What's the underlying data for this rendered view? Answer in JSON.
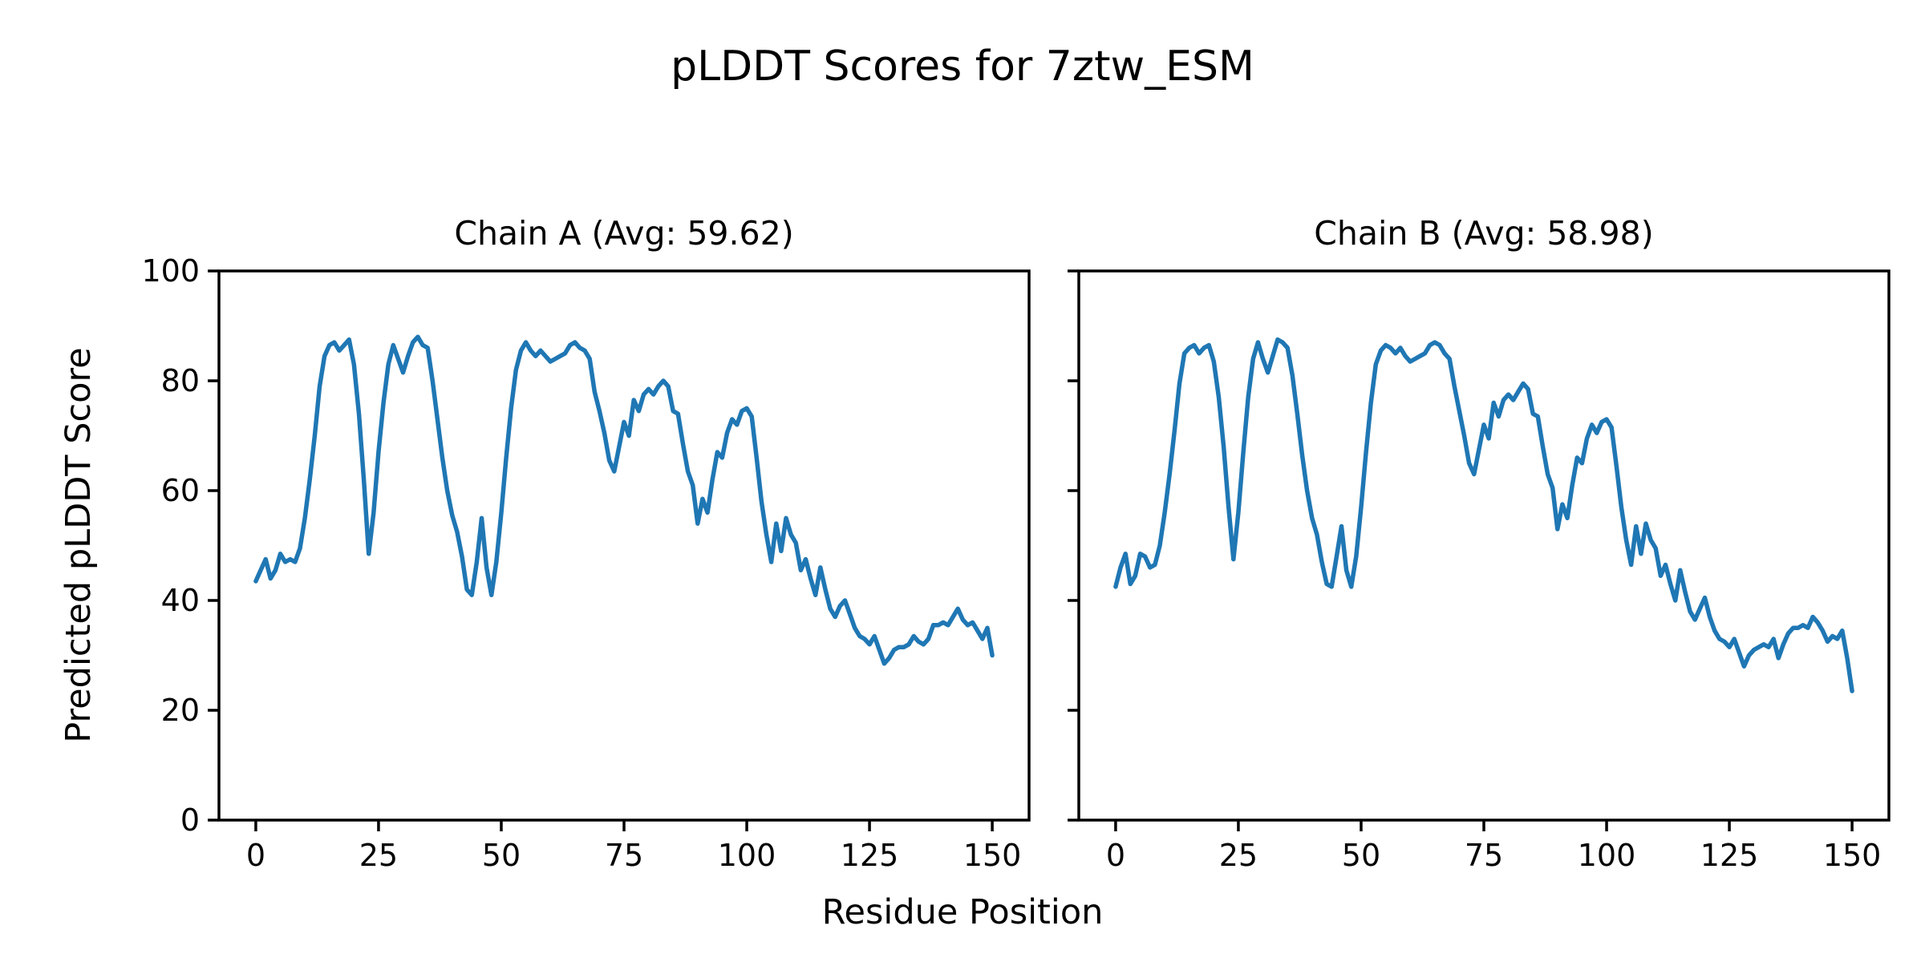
{
  "figure": {
    "title": "pLDDT Scores for 7ztw_ESM",
    "xlabel": "Residue Position",
    "ylabel": "Predicted pLDDT Score",
    "background_color": "#ffffff",
    "line_color": "#1f77b4",
    "axis_color": "#000000"
  },
  "chart_data": [
    {
      "type": "line",
      "title": "Chain A (Avg: 59.62)",
      "chain": "A",
      "average_plddt": 59.62,
      "xlabel": "Residue Position",
      "ylabel": "Predicted pLDDT Score",
      "xlim": [
        -7.5,
        157.5
      ],
      "ylim": [
        0,
        100
      ],
      "xticks": [
        0,
        25,
        50,
        75,
        100,
        125,
        150
      ],
      "yticks": [
        0,
        20,
        40,
        60,
        80,
        100
      ],
      "grid": false,
      "x_start": 0,
      "x_step": 1,
      "values": [
        43.5,
        45.5,
        47.5,
        44,
        45.5,
        48.5,
        47,
        47.5,
        47,
        49.5,
        55,
        62,
        70,
        79,
        84.5,
        86.5,
        87,
        85.5,
        86.5,
        87.5,
        83,
        74,
        62,
        48.5,
        56,
        67,
        76,
        83,
        86.5,
        84,
        81.5,
        84.5,
        87,
        88,
        86.5,
        86,
        80,
        73,
        66,
        60,
        55.5,
        52.5,
        48,
        42,
        41,
        47,
        55,
        46,
        41,
        47,
        56,
        66,
        75,
        82,
        85.5,
        87,
        85.5,
        84.5,
        85.5,
        84.5,
        83.5,
        84,
        84.5,
        85,
        86.5,
        87,
        86,
        85.5,
        84,
        78,
        74.5,
        70.5,
        65.5,
        63.5,
        68,
        72.5,
        70,
        76.5,
        74.5,
        77.5,
        78.5,
        77.5,
        79,
        80,
        79,
        74.5,
        74,
        68.5,
        63.5,
        61,
        54,
        58.5,
        56,
        62,
        67,
        66,
        70.5,
        73,
        72,
        74.5,
        75,
        73.5,
        66,
        58,
        52,
        47,
        54,
        49,
        55,
        52,
        50.5,
        45.5,
        47.5,
        44,
        41,
        46,
        42,
        38.5,
        37,
        39,
        40,
        37.5,
        35,
        33.5,
        33,
        32,
        33.5,
        31,
        28.5,
        29.5,
        31,
        31.5,
        31.5,
        32,
        33.5,
        32.5,
        32,
        33,
        35.5,
        35.5,
        36,
        35.5,
        37,
        38.5,
        36.5,
        35.5,
        36,
        34.5,
        33,
        35,
        30
      ]
    },
    {
      "type": "line",
      "title": "Chain B (Avg: 58.98)",
      "chain": "B",
      "average_plddt": 58.98,
      "xlabel": "Residue Position",
      "ylabel": "Predicted pLDDT Score",
      "xlim": [
        -7.5,
        157.5
      ],
      "ylim": [
        0,
        100
      ],
      "xticks": [
        0,
        25,
        50,
        75,
        100,
        125,
        150
      ],
      "yticks": [
        0,
        20,
        40,
        60,
        80,
        100
      ],
      "grid": false,
      "x_start": 0,
      "x_step": 1,
      "values": [
        42.5,
        46,
        48.5,
        43,
        44.5,
        48.5,
        48,
        46,
        46.5,
        50,
        56,
        63,
        71,
        79.5,
        85,
        86,
        86.5,
        85,
        86,
        86.5,
        83.5,
        77,
        68,
        57,
        47.5,
        56,
        67,
        77,
        84,
        87,
        84,
        81.5,
        84.5,
        87.5,
        87,
        86,
        81,
        74,
        66.5,
        60,
        55,
        52,
        47,
        43,
        42.5,
        48,
        53.5,
        45.5,
        42.5,
        48,
        57,
        67,
        76,
        83,
        85.5,
        86.5,
        86,
        85,
        86,
        84.5,
        83.5,
        84,
        84.5,
        85,
        86.5,
        87,
        86.5,
        85,
        84,
        79,
        74.5,
        70,
        65,
        63,
        67.5,
        72,
        69.5,
        76,
        73.5,
        76.5,
        77.5,
        76.5,
        78,
        79.5,
        78.5,
        74,
        73.5,
        68,
        63,
        60.5,
        53,
        57.5,
        55,
        61,
        66,
        65,
        69.5,
        72,
        70.5,
        72.5,
        73,
        71.5,
        64.5,
        57,
        51,
        46.5,
        53.5,
        48.5,
        54,
        51,
        49.5,
        44.5,
        46.5,
        43,
        40,
        45.5,
        41.5,
        38,
        36.5,
        38.5,
        40.5,
        37,
        34.5,
        33,
        32.5,
        31.5,
        33,
        30.5,
        28,
        30,
        31,
        31.5,
        32,
        31.5,
        33,
        29.5,
        32,
        34,
        35,
        35,
        35.5,
        35,
        37,
        36,
        34.5,
        32.5,
        33.5,
        33,
        34.5,
        29.5,
        23.5
      ]
    }
  ]
}
